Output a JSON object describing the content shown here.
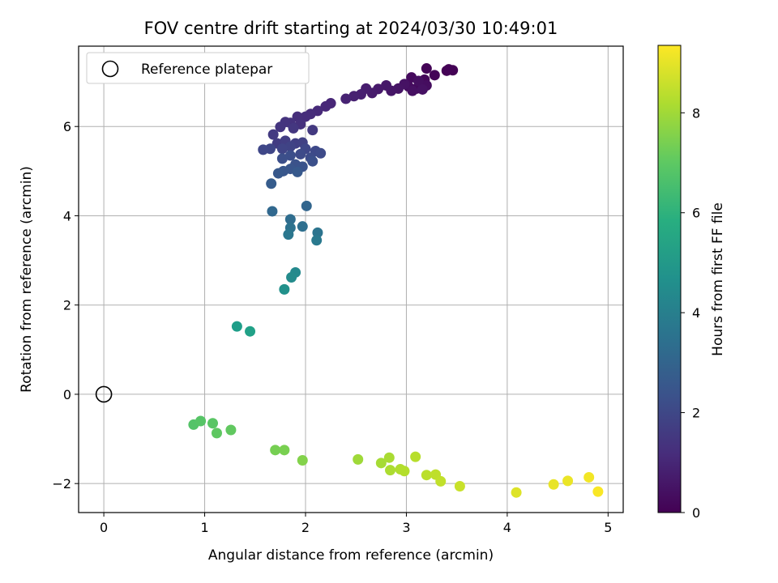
{
  "chart_data": {
    "type": "scatter",
    "title": "FOV centre drift starting at 2024/03/30 10:49:01",
    "xlabel": "Angular distance from reference (arcmin)",
    "ylabel": "Rotation from reference (arcmin)",
    "xlim": [
      -0.25,
      5.15
    ],
    "ylim": [
      -2.65,
      7.8
    ],
    "xticks": [
      0,
      1,
      2,
      3,
      4,
      5
    ],
    "yticks": [
      -2,
      0,
      2,
      4,
      6
    ],
    "grid": true,
    "legend": {
      "location": "top-left",
      "entries": [
        "Reference platepar"
      ]
    },
    "colorbar": {
      "label": "Hours from first FF file",
      "range": [
        0,
        9.35
      ],
      "ticks": [
        0,
        2,
        4,
        6,
        8
      ],
      "colormap": "viridis"
    },
    "reference_point": {
      "x": 0,
      "y": 0,
      "label": "Reference platepar"
    },
    "series": [
      {
        "marker": "filled-circle",
        "points": [
          {
            "x": 3.46,
            "y": 7.26,
            "t": 0.02
          },
          {
            "x": 3.4,
            "y": 7.25,
            "t": 0.04
          },
          {
            "x": 3.42,
            "y": 7.28,
            "t": 0.05
          },
          {
            "x": 3.28,
            "y": 7.15,
            "t": 0.08
          },
          {
            "x": 3.2,
            "y": 7.3,
            "t": 0.1
          },
          {
            "x": 3.18,
            "y": 7.05,
            "t": 0.14
          },
          {
            "x": 3.15,
            "y": 6.95,
            "t": 0.18
          },
          {
            "x": 3.1,
            "y": 6.85,
            "t": 0.22
          },
          {
            "x": 3.05,
            "y": 7.1,
            "t": 0.25
          },
          {
            "x": 3.02,
            "y": 6.9,
            "t": 0.3
          },
          {
            "x": 3.2,
            "y": 6.92,
            "t": 0.33
          },
          {
            "x": 3.12,
            "y": 7.02,
            "t": 0.36
          },
          {
            "x": 3.06,
            "y": 6.8,
            "t": 0.4
          },
          {
            "x": 3.16,
            "y": 6.83,
            "t": 0.43
          },
          {
            "x": 2.98,
            "y": 6.95,
            "t": 0.46
          },
          {
            "x": 2.92,
            "y": 6.85,
            "t": 0.5
          },
          {
            "x": 2.85,
            "y": 6.8,
            "t": 0.55
          },
          {
            "x": 2.8,
            "y": 6.92,
            "t": 0.6
          },
          {
            "x": 2.72,
            "y": 6.84,
            "t": 0.65
          },
          {
            "x": 2.66,
            "y": 6.75,
            "t": 0.7
          },
          {
            "x": 2.6,
            "y": 6.85,
            "t": 0.75
          },
          {
            "x": 2.55,
            "y": 6.72,
            "t": 0.8
          },
          {
            "x": 2.48,
            "y": 6.68,
            "t": 0.85
          },
          {
            "x": 2.4,
            "y": 6.62,
            "t": 0.9
          },
          {
            "x": 2.25,
            "y": 6.52,
            "t": 1.0
          },
          {
            "x": 2.2,
            "y": 6.45,
            "t": 1.05
          },
          {
            "x": 2.12,
            "y": 6.35,
            "t": 1.1
          },
          {
            "x": 2.05,
            "y": 6.28,
            "t": 1.15
          },
          {
            "x": 2.0,
            "y": 6.22,
            "t": 1.2
          },
          {
            "x": 1.92,
            "y": 6.22,
            "t": 1.25
          },
          {
            "x": 1.95,
            "y": 6.05,
            "t": 1.3
          },
          {
            "x": 1.85,
            "y": 6.08,
            "t": 1.35
          },
          {
            "x": 1.8,
            "y": 6.1,
            "t": 1.4
          },
          {
            "x": 1.75,
            "y": 5.99,
            "t": 1.45
          },
          {
            "x": 1.88,
            "y": 5.96,
            "t": 1.5
          },
          {
            "x": 2.07,
            "y": 5.92,
            "t": 1.55
          },
          {
            "x": 1.68,
            "y": 5.82,
            "t": 1.6
          },
          {
            "x": 1.72,
            "y": 5.62,
            "t": 1.65
          },
          {
            "x": 1.8,
            "y": 5.68,
            "t": 1.7
          },
          {
            "x": 1.9,
            "y": 5.62,
            "t": 1.75
          },
          {
            "x": 1.97,
            "y": 5.64,
            "t": 1.8
          },
          {
            "x": 1.85,
            "y": 5.55,
            "t": 1.85
          },
          {
            "x": 1.77,
            "y": 5.5,
            "t": 1.9
          },
          {
            "x": 1.65,
            "y": 5.5,
            "t": 1.95
          },
          {
            "x": 1.58,
            "y": 5.48,
            "t": 2.0
          },
          {
            "x": 2.0,
            "y": 5.5,
            "t": 2.0
          },
          {
            "x": 2.1,
            "y": 5.45,
            "t": 2.05
          },
          {
            "x": 2.15,
            "y": 5.4,
            "t": 2.1
          },
          {
            "x": 1.95,
            "y": 5.38,
            "t": 2.1
          },
          {
            "x": 2.05,
            "y": 5.3,
            "t": 2.15
          },
          {
            "x": 1.85,
            "y": 5.35,
            "t": 2.2
          },
          {
            "x": 1.77,
            "y": 5.28,
            "t": 2.25
          },
          {
            "x": 2.07,
            "y": 5.22,
            "t": 2.3
          },
          {
            "x": 1.9,
            "y": 5.15,
            "t": 2.35
          },
          {
            "x": 1.97,
            "y": 5.1,
            "t": 2.4
          },
          {
            "x": 1.85,
            "y": 5.05,
            "t": 2.45
          },
          {
            "x": 1.78,
            "y": 5.0,
            "t": 2.5
          },
          {
            "x": 1.73,
            "y": 4.95,
            "t": 2.55
          },
          {
            "x": 1.92,
            "y": 4.98,
            "t": 2.6
          },
          {
            "x": 1.66,
            "y": 4.72,
            "t": 2.7
          },
          {
            "x": 2.01,
            "y": 4.22,
            "t": 3.0
          },
          {
            "x": 1.67,
            "y": 4.1,
            "t": 3.1
          },
          {
            "x": 1.85,
            "y": 3.92,
            "t": 3.3
          },
          {
            "x": 1.97,
            "y": 3.76,
            "t": 3.4
          },
          {
            "x": 1.85,
            "y": 3.73,
            "t": 3.5
          },
          {
            "x": 2.12,
            "y": 3.62,
            "t": 3.6
          },
          {
            "x": 1.83,
            "y": 3.58,
            "t": 3.7
          },
          {
            "x": 2.11,
            "y": 3.45,
            "t": 3.8
          },
          {
            "x": 1.9,
            "y": 2.73,
            "t": 4.4
          },
          {
            "x": 1.86,
            "y": 2.62,
            "t": 4.5
          },
          {
            "x": 1.79,
            "y": 2.35,
            "t": 4.7
          },
          {
            "x": 1.32,
            "y": 1.52,
            "t": 5.2
          },
          {
            "x": 1.45,
            "y": 1.41,
            "t": 5.3
          },
          {
            "x": 0.89,
            "y": -0.68,
            "t": 6.8
          },
          {
            "x": 0.96,
            "y": -0.6,
            "t": 6.85
          },
          {
            "x": 1.08,
            "y": -0.65,
            "t": 6.9
          },
          {
            "x": 1.12,
            "y": -0.87,
            "t": 7.0
          },
          {
            "x": 1.26,
            "y": -0.8,
            "t": 7.05
          },
          {
            "x": 1.7,
            "y": -1.25,
            "t": 7.4
          },
          {
            "x": 1.79,
            "y": -1.25,
            "t": 7.45
          },
          {
            "x": 1.97,
            "y": -1.48,
            "t": 7.6
          },
          {
            "x": 2.52,
            "y": -1.46,
            "t": 8.0
          },
          {
            "x": 2.75,
            "y": -1.54,
            "t": 8.1
          },
          {
            "x": 2.83,
            "y": -1.42,
            "t": 8.15
          },
          {
            "x": 2.84,
            "y": -1.7,
            "t": 8.2
          },
          {
            "x": 2.94,
            "y": -1.68,
            "t": 8.25
          },
          {
            "x": 2.98,
            "y": -1.72,
            "t": 8.3
          },
          {
            "x": 3.09,
            "y": -1.4,
            "t": 8.35
          },
          {
            "x": 3.2,
            "y": -1.81,
            "t": 8.4
          },
          {
            "x": 3.29,
            "y": -1.8,
            "t": 8.45
          },
          {
            "x": 3.34,
            "y": -1.95,
            "t": 8.5
          },
          {
            "x": 3.53,
            "y": -2.06,
            "t": 8.6
          },
          {
            "x": 4.09,
            "y": -2.2,
            "t": 8.9
          },
          {
            "x": 4.46,
            "y": -2.02,
            "t": 9.05
          },
          {
            "x": 4.6,
            "y": -1.94,
            "t": 9.1
          },
          {
            "x": 4.81,
            "y": -1.86,
            "t": 9.2
          },
          {
            "x": 4.9,
            "y": -2.18,
            "t": 9.3
          }
        ]
      }
    ]
  }
}
